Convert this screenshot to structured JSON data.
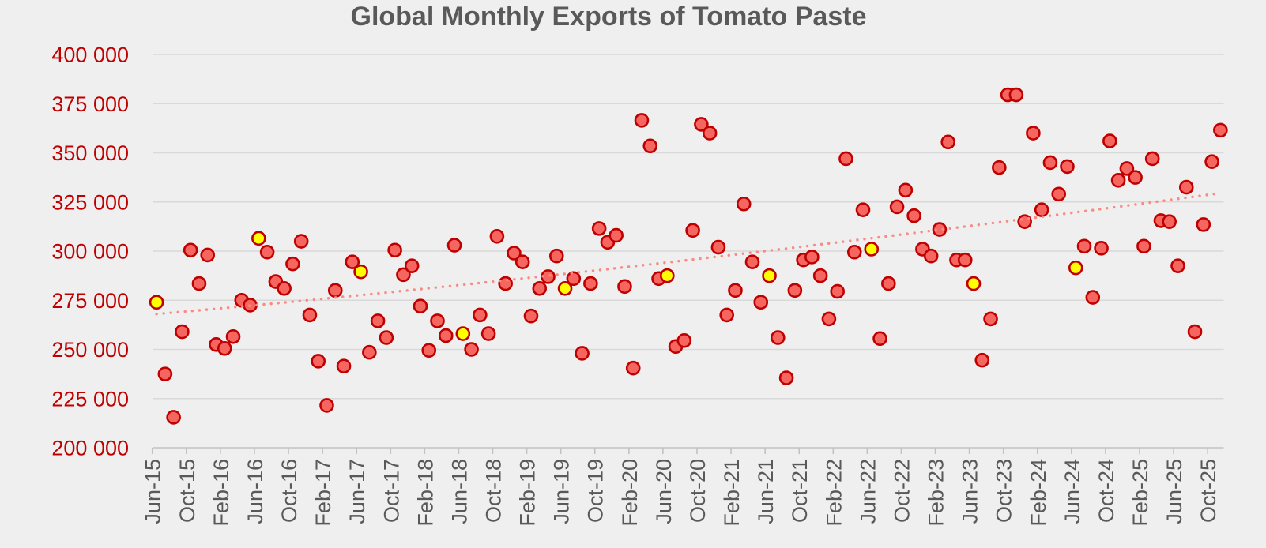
{
  "title": "Global Monthly Exports of Tomato Paste",
  "colors": {
    "background": "#f0efef",
    "title_text": "#595959",
    "y_axis_label": "#c00000",
    "x_axis_label": "#595959",
    "gridline": "#d9d9d9",
    "axis_line": "#c2c2c2",
    "tick_mark": "#c2c2c2",
    "point_fill": "#f4665f",
    "point_stroke": "#c00000",
    "highlight_fill": "#ffff00",
    "trend_line": "#f88b84"
  },
  "chart_data": {
    "type": "scatter",
    "title": "Global Monthly Exports of Tomato Paste",
    "xlabel": "",
    "ylabel": "",
    "grid": true,
    "legend": "none",
    "y_axis": {
      "min": 200000,
      "max": 400000,
      "step": 25000,
      "tick_values": [
        400000,
        375000,
        350000,
        325000,
        300000,
        275000,
        250000,
        225000,
        200000
      ],
      "tick_labels": [
        "400 000",
        "375 000",
        "350 000",
        "325 000",
        "300 000",
        "275 000",
        "250 000",
        "225 000",
        "200 000"
      ]
    },
    "x_axis": {
      "unit": "month",
      "first_month": "Jun-15",
      "last_month": "Nov-25",
      "labeled_every_n_months": 4,
      "tick_labels": [
        "Jun-15",
        "Oct-15",
        "Feb-16",
        "Jun-16",
        "Oct-16",
        "Feb-17",
        "Jun-17",
        "Oct-17",
        "Feb-18",
        "Jun-18",
        "Oct-18",
        "Feb-19",
        "Jun-19",
        "Oct-19",
        "Feb-20",
        "Jun-20",
        "Oct-20",
        "Feb-21",
        "Jun-21",
        "Oct-21",
        "Feb-22",
        "Jun-22",
        "Oct-22",
        "Feb-23",
        "Jun-23",
        "Oct-23",
        "Feb-24",
        "Jun-24",
        "Oct-24",
        "Feb-25",
        "Jun-25",
        "Oct-25"
      ]
    },
    "highlight_note": "June values 2015-2024 shown as yellow markers",
    "series": [
      {
        "name": "Monthly exports",
        "points": [
          {
            "m": "Jun-15",
            "v": 274000,
            "hl": true
          },
          {
            "m": "Jul-15",
            "v": 237500,
            "hl": false
          },
          {
            "m": "Aug-15",
            "v": 215500,
            "hl": false
          },
          {
            "m": "Sep-15",
            "v": 259000,
            "hl": false
          },
          {
            "m": "Oct-15",
            "v": 300500,
            "hl": false
          },
          {
            "m": "Nov-15",
            "v": 283500,
            "hl": false
          },
          {
            "m": "Dec-15",
            "v": 298000,
            "hl": false
          },
          {
            "m": "Jan-16",
            "v": 252500,
            "hl": false
          },
          {
            "m": "Feb-16",
            "v": 250500,
            "hl": false
          },
          {
            "m": "Mar-16",
            "v": 256500,
            "hl": false
          },
          {
            "m": "Apr-16",
            "v": 275000,
            "hl": false
          },
          {
            "m": "May-16",
            "v": 272500,
            "hl": false
          },
          {
            "m": "Jun-16",
            "v": 306500,
            "hl": true
          },
          {
            "m": "Jul-16",
            "v": 299500,
            "hl": false
          },
          {
            "m": "Aug-16",
            "v": 284500,
            "hl": false
          },
          {
            "m": "Sep-16",
            "v": 281000,
            "hl": false
          },
          {
            "m": "Oct-16",
            "v": 293500,
            "hl": false
          },
          {
            "m": "Nov-16",
            "v": 305000,
            "hl": false
          },
          {
            "m": "Dec-16",
            "v": 267500,
            "hl": false
          },
          {
            "m": "Jan-17",
            "v": 244000,
            "hl": false
          },
          {
            "m": "Feb-17",
            "v": 221500,
            "hl": false
          },
          {
            "m": "Mar-17",
            "v": 280000,
            "hl": false
          },
          {
            "m": "Apr-17",
            "v": 241500,
            "hl": false
          },
          {
            "m": "May-17",
            "v": 294500,
            "hl": false
          },
          {
            "m": "Jun-17",
            "v": 289500,
            "hl": true
          },
          {
            "m": "Jul-17",
            "v": 248500,
            "hl": false
          },
          {
            "m": "Aug-17",
            "v": 264500,
            "hl": false
          },
          {
            "m": "Sep-17",
            "v": 256000,
            "hl": false
          },
          {
            "m": "Oct-17",
            "v": 300500,
            "hl": false
          },
          {
            "m": "Nov-17",
            "v": 288000,
            "hl": false
          },
          {
            "m": "Dec-17",
            "v": 292500,
            "hl": false
          },
          {
            "m": "Jan-18",
            "v": 272000,
            "hl": false
          },
          {
            "m": "Feb-18",
            "v": 249500,
            "hl": false
          },
          {
            "m": "Mar-18",
            "v": 264500,
            "hl": false
          },
          {
            "m": "Apr-18",
            "v": 257000,
            "hl": false
          },
          {
            "m": "May-18",
            "v": 303000,
            "hl": false
          },
          {
            "m": "Jun-18",
            "v": 258000,
            "hl": true
          },
          {
            "m": "Jul-18",
            "v": 250000,
            "hl": false
          },
          {
            "m": "Aug-18",
            "v": 267500,
            "hl": false
          },
          {
            "m": "Sep-18",
            "v": 258000,
            "hl": false
          },
          {
            "m": "Oct-18",
            "v": 307500,
            "hl": false
          },
          {
            "m": "Nov-18",
            "v": 283500,
            "hl": false
          },
          {
            "m": "Dec-18",
            "v": 299000,
            "hl": false
          },
          {
            "m": "Jan-19",
            "v": 294500,
            "hl": false
          },
          {
            "m": "Feb-19",
            "v": 267000,
            "hl": false
          },
          {
            "m": "Mar-19",
            "v": 281000,
            "hl": false
          },
          {
            "m": "Apr-19",
            "v": 287000,
            "hl": false
          },
          {
            "m": "May-19",
            "v": 297500,
            "hl": false
          },
          {
            "m": "Jun-19",
            "v": 281000,
            "hl": true
          },
          {
            "m": "Jul-19",
            "v": 286000,
            "hl": false
          },
          {
            "m": "Aug-19",
            "v": 248000,
            "hl": false
          },
          {
            "m": "Sep-19",
            "v": 283500,
            "hl": false
          },
          {
            "m": "Oct-19",
            "v": 311500,
            "hl": false
          },
          {
            "m": "Nov-19",
            "v": 304500,
            "hl": false
          },
          {
            "m": "Dec-19",
            "v": 308000,
            "hl": false
          },
          {
            "m": "Jan-20",
            "v": 282000,
            "hl": false
          },
          {
            "m": "Feb-20",
            "v": 240500,
            "hl": false
          },
          {
            "m": "Mar-20",
            "v": 366500,
            "hl": false
          },
          {
            "m": "Apr-20",
            "v": 353500,
            "hl": false
          },
          {
            "m": "May-20",
            "v": 286000,
            "hl": false
          },
          {
            "m": "Jun-20",
            "v": 287500,
            "hl": true
          },
          {
            "m": "Jul-20",
            "v": 251500,
            "hl": false
          },
          {
            "m": "Aug-20",
            "v": 254500,
            "hl": false
          },
          {
            "m": "Sep-20",
            "v": 310500,
            "hl": false
          },
          {
            "m": "Oct-20",
            "v": 364500,
            "hl": false
          },
          {
            "m": "Nov-20",
            "v": 360000,
            "hl": false
          },
          {
            "m": "Dec-20",
            "v": 302000,
            "hl": false
          },
          {
            "m": "Jan-21",
            "v": 267500,
            "hl": false
          },
          {
            "m": "Feb-21",
            "v": 280000,
            "hl": false
          },
          {
            "m": "Mar-21",
            "v": 324000,
            "hl": false
          },
          {
            "m": "Apr-21",
            "v": 294500,
            "hl": false
          },
          {
            "m": "May-21",
            "v": 274000,
            "hl": false
          },
          {
            "m": "Jun-21",
            "v": 287500,
            "hl": true
          },
          {
            "m": "Jul-21",
            "v": 256000,
            "hl": false
          },
          {
            "m": "Aug-21",
            "v": 235500,
            "hl": false
          },
          {
            "m": "Sep-21",
            "v": 280000,
            "hl": false
          },
          {
            "m": "Oct-21",
            "v": 295500,
            "hl": false
          },
          {
            "m": "Nov-21",
            "v": 297000,
            "hl": false
          },
          {
            "m": "Dec-21",
            "v": 287500,
            "hl": false
          },
          {
            "m": "Jan-22",
            "v": 265500,
            "hl": false
          },
          {
            "m": "Feb-22",
            "v": 279500,
            "hl": false
          },
          {
            "m": "Mar-22",
            "v": 347000,
            "hl": false
          },
          {
            "m": "Apr-22",
            "v": 299500,
            "hl": false
          },
          {
            "m": "May-22",
            "v": 321000,
            "hl": false
          },
          {
            "m": "Jun-22",
            "v": 301000,
            "hl": true
          },
          {
            "m": "Jul-22",
            "v": 255500,
            "hl": false
          },
          {
            "m": "Aug-22",
            "v": 283500,
            "hl": false
          },
          {
            "m": "Sep-22",
            "v": 322500,
            "hl": false
          },
          {
            "m": "Oct-22",
            "v": 331000,
            "hl": false
          },
          {
            "m": "Nov-22",
            "v": 318000,
            "hl": false
          },
          {
            "m": "Dec-22",
            "v": 301000,
            "hl": false
          },
          {
            "m": "Jan-23",
            "v": 297500,
            "hl": false
          },
          {
            "m": "Feb-23",
            "v": 311000,
            "hl": false
          },
          {
            "m": "Mar-23",
            "v": 355500,
            "hl": false
          },
          {
            "m": "Apr-23",
            "v": 295500,
            "hl": false
          },
          {
            "m": "May-23",
            "v": 295500,
            "hl": false
          },
          {
            "m": "Jun-23",
            "v": 283500,
            "hl": true
          },
          {
            "m": "Jul-23",
            "v": 244500,
            "hl": false
          },
          {
            "m": "Aug-23",
            "v": 265500,
            "hl": false
          },
          {
            "m": "Sep-23",
            "v": 342500,
            "hl": false
          },
          {
            "m": "Oct-23",
            "v": 379500,
            "hl": false
          },
          {
            "m": "Nov-23",
            "v": 379500,
            "hl": false
          },
          {
            "m": "Dec-23",
            "v": 315000,
            "hl": false
          },
          {
            "m": "Jan-24",
            "v": 360000,
            "hl": false
          },
          {
            "m": "Feb-24",
            "v": 321000,
            "hl": false
          },
          {
            "m": "Mar-24",
            "v": 345000,
            "hl": false
          },
          {
            "m": "Apr-24",
            "v": 329000,
            "hl": false
          },
          {
            "m": "May-24",
            "v": 343000,
            "hl": false
          },
          {
            "m": "Jun-24",
            "v": 291500,
            "hl": true
          },
          {
            "m": "Jul-24",
            "v": 302500,
            "hl": false
          },
          {
            "m": "Aug-24",
            "v": 276500,
            "hl": false
          },
          {
            "m": "Sep-24",
            "v": 301500,
            "hl": false
          },
          {
            "m": "Oct-24",
            "v": 356000,
            "hl": false
          },
          {
            "m": "Nov-24",
            "v": 336000,
            "hl": false
          },
          {
            "m": "Dec-24",
            "v": 342000,
            "hl": false
          },
          {
            "m": "Jan-25",
            "v": 337500,
            "hl": false
          },
          {
            "m": "Feb-25",
            "v": 302500,
            "hl": false
          },
          {
            "m": "Mar-25",
            "v": 347000,
            "hl": false
          },
          {
            "m": "Apr-25",
            "v": 315500,
            "hl": false
          },
          {
            "m": "May-25",
            "v": 315000,
            "hl": false
          },
          {
            "m": "Jun-25",
            "v": 292500,
            "hl": false
          },
          {
            "m": "Jul-25",
            "v": 332500,
            "hl": false
          },
          {
            "m": "Aug-25",
            "v": 259000,
            "hl": false
          },
          {
            "m": "Sep-25",
            "v": 313500,
            "hl": false
          },
          {
            "m": "Oct-25",
            "v": 345500,
            "hl": false
          },
          {
            "m": "Nov-25",
            "v": 361500,
            "hl": false
          }
        ]
      }
    ],
    "trend": {
      "style": "dotted",
      "shape": "slightly-curved-upward",
      "start_index": 0,
      "start_value": 268000,
      "control_index": 55,
      "control_value": 288500,
      "end_index": 125,
      "end_value": 329500
    }
  }
}
